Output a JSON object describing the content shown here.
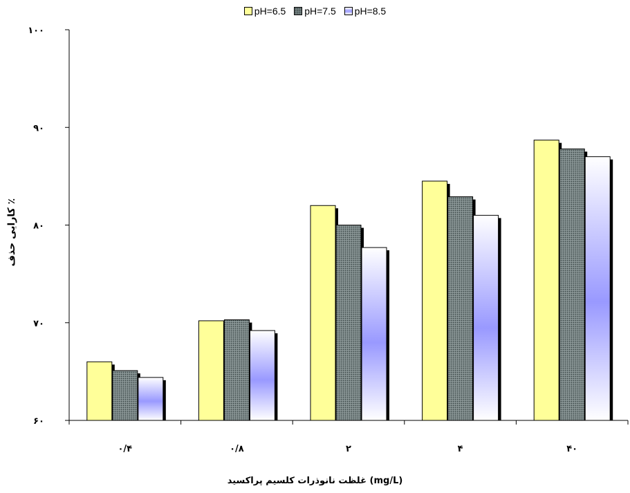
{
  "legend": {
    "items": [
      "pH=6.5",
      "pH=7.5",
      "pH=8.5"
    ]
  },
  "chart_data": {
    "type": "bar",
    "xlabel": "غلظت نانوذرات کلسیم پراکسید (mg/L)",
    "ylabel": "کارایی حذف ٪",
    "categories": [
      "۰/۴",
      "۰/۸",
      "۲",
      "۴",
      "۴۰"
    ],
    "ylim": [
      60,
      100
    ],
    "yticks": [
      60,
      70,
      80,
      90,
      100
    ],
    "yticklabels": [
      "۶۰",
      "۷۰",
      "۸۰",
      "۹۰",
      "۱۰۰"
    ],
    "grid": false,
    "legend_position": "top",
    "series": [
      {
        "name": "pH=6.5",
        "color": "#ffff99",
        "values": [
          66.0,
          70.2,
          82.0,
          84.5,
          88.7
        ]
      },
      {
        "name": "pH=7.5",
        "color": "#7f8c8c",
        "values": [
          65.1,
          70.3,
          80.0,
          82.9,
          87.8
        ]
      },
      {
        "name": "pH=8.5",
        "color": "#9999ff",
        "values": [
          64.4,
          69.2,
          77.7,
          81.0,
          87.0
        ]
      }
    ]
  }
}
